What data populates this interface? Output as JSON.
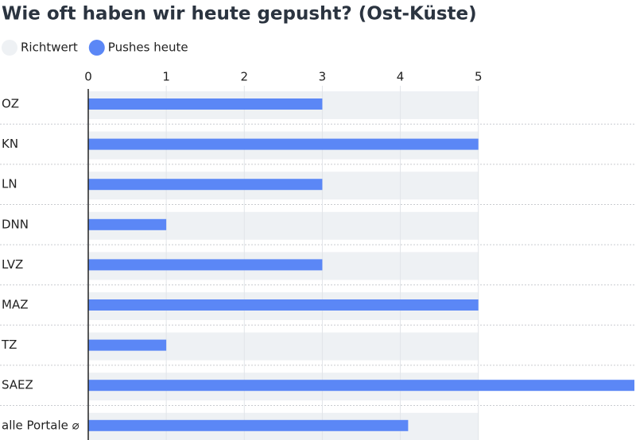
{
  "chart_data": {
    "type": "bar",
    "orientation": "horizontal",
    "title": "Wie oft haben wir heute gepusht? (Ost-Küste)",
    "categories": [
      "OZ",
      "KN",
      "LN",
      "DNN",
      "LVZ",
      "MAZ",
      "TZ",
      "SAEZ",
      "alle Portale ⌀"
    ],
    "series": [
      {
        "name": "Richtwert",
        "color": "#eef1f4",
        "values": [
          5,
          5,
          5,
          5,
          5,
          5,
          5,
          5,
          5
        ]
      },
      {
        "name": "Pushes heute",
        "color": "#5b87f6",
        "values": [
          3,
          5,
          3,
          1,
          3,
          5,
          1,
          7,
          4.1
        ]
      }
    ],
    "xlim": [
      0,
      7
    ],
    "xticks": [
      0,
      1,
      2,
      3,
      4,
      5
    ],
    "grid": true
  }
}
